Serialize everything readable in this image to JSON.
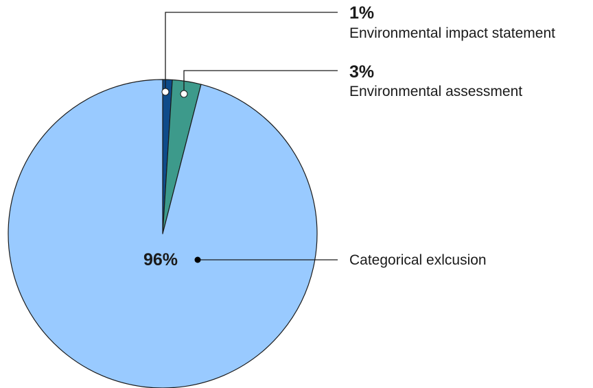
{
  "chart_data": {
    "type": "pie",
    "slices": [
      {
        "label": "Environmental impact statement",
        "value": 1,
        "value_label": "1%",
        "color": "#0e4b8a",
        "marker_color": "#ffffff"
      },
      {
        "label": "Environmental assessment",
        "value": 3,
        "value_label": "3%",
        "color": "#3d9a8b",
        "marker_color": "#ffffff"
      },
      {
        "label": "Categorical exlcusion",
        "value": 96,
        "value_label": "96%",
        "color": "#99caff",
        "marker_color": "#000000"
      }
    ],
    "title": "",
    "start_angle": "12 o'clock",
    "direction": "clockwise",
    "legend": "none"
  }
}
